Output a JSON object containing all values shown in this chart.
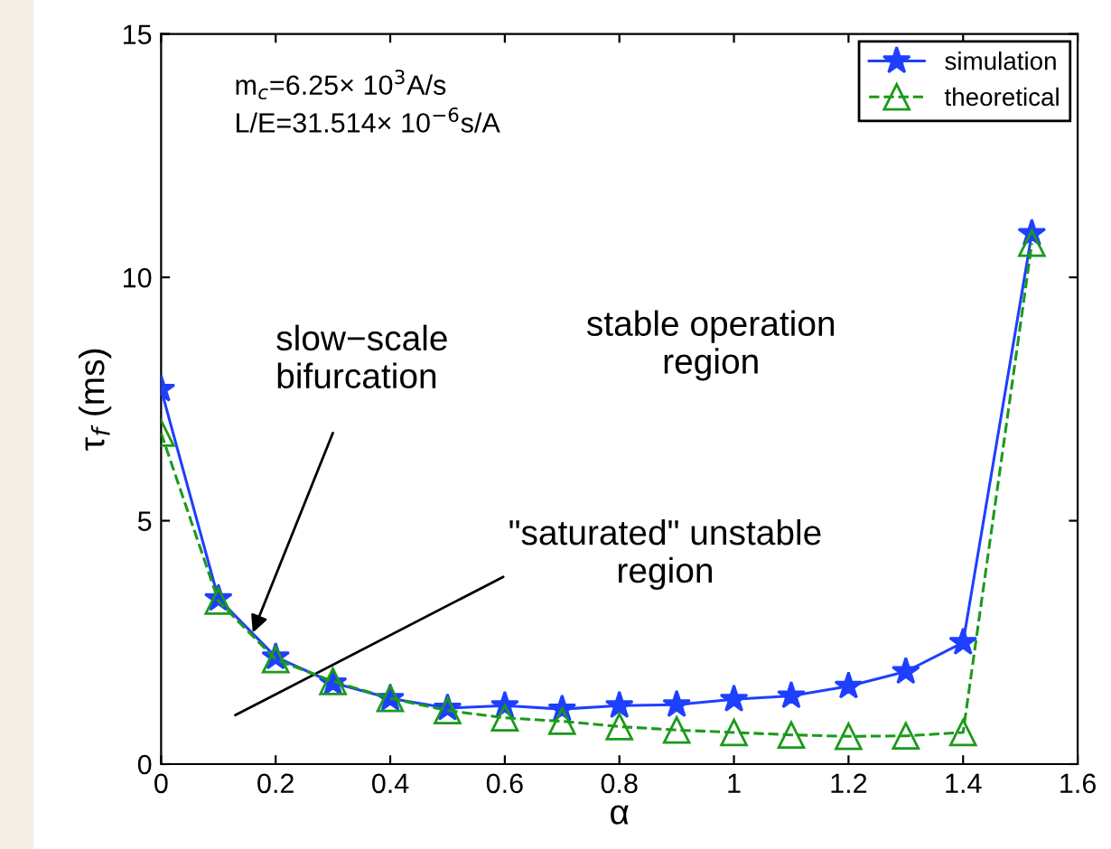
{
  "chart_data": {
    "type": "line",
    "xlabel": "α",
    "ylabel": "τ$_{f}$ (ms)",
    "xlim": [
      0,
      1.6
    ],
    "ylim": [
      0,
      15
    ],
    "xticks": [
      0,
      0.2,
      0.4,
      0.6,
      0.8,
      1,
      1.2,
      1.4,
      1.6
    ],
    "yticks": [
      0,
      5,
      10,
      15
    ],
    "grid": false,
    "legend": "top right",
    "series": [
      {
        "name": "simulation",
        "color": "#1f3fff",
        "marker": "star",
        "line_style": "solid",
        "x": [
          0,
          0.1,
          0.2,
          0.3,
          0.4,
          0.5,
          0.6,
          0.7,
          0.8,
          0.9,
          1.0,
          1.1,
          1.2,
          1.3,
          1.4,
          1.52
        ],
        "values": [
          7.7,
          3.4,
          2.2,
          1.67,
          1.35,
          1.15,
          1.2,
          1.13,
          1.2,
          1.22,
          1.33,
          1.4,
          1.6,
          1.9,
          2.5,
          10.9
        ]
      },
      {
        "name": "theoretical",
        "color": "#1a9a1a",
        "marker": "triangle",
        "line_style": "dashed",
        "x": [
          0,
          0.1,
          0.2,
          0.3,
          0.4,
          0.5,
          0.6,
          0.7,
          0.8,
          0.9,
          1.0,
          1.1,
          1.2,
          1.3,
          1.4,
          1.52
        ],
        "values": [
          6.8,
          3.35,
          2.15,
          1.7,
          1.35,
          1.1,
          0.95,
          0.88,
          0.77,
          0.7,
          0.65,
          0.6,
          0.57,
          0.58,
          0.65,
          10.7
        ]
      }
    ],
    "annotations": [
      "m$_{c}$=6.25× 10$^{3}$A/s\nL/E=31.514× 10$^{−6}$s/A",
      {
        "text": "slow−scale\nbifurcation",
        "x": 0.16,
        "y": 2.7
      },
      "stable operation\nregion",
      "\"saturated\" unstable\nregion"
    ]
  }
}
